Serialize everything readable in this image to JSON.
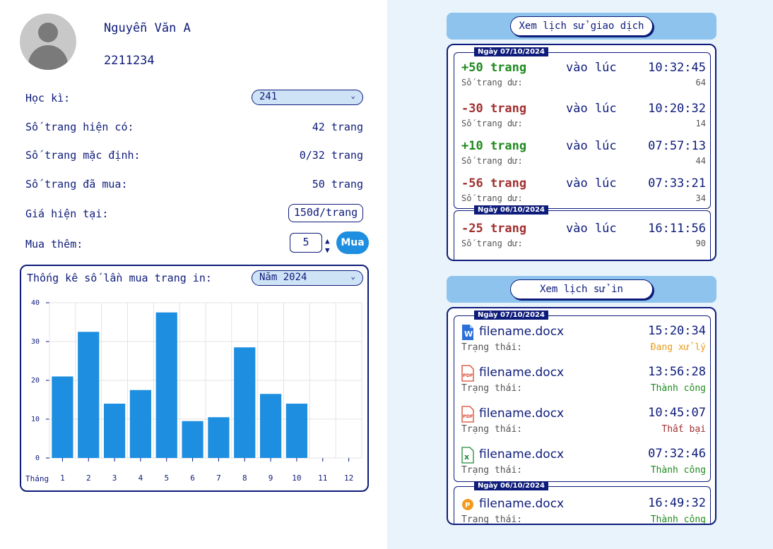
{
  "user": {
    "name": "Nguyễn Văn A",
    "id": "2211234"
  },
  "info": {
    "semester_label": "Học kì:",
    "semester_value": "241",
    "pages_available_label": "Số trang hiện có:",
    "pages_available_value": "42 trang",
    "pages_default_label": "Số trang mặc định:",
    "pages_default_value": "0/32 trang",
    "pages_bought_label": "Số trang đã mua:",
    "pages_bought_value": "50 trang",
    "price_label": "Giá hiện tại:",
    "price_value": "150đ/trang",
    "buy_more_label": "Mua thêm:",
    "buy_qty": "5",
    "buy_button": "Mua"
  },
  "stats": {
    "title": "Thống kê số lần mua trang in:",
    "year_select": "Năm 2024",
    "x_prefix": "Tháng"
  },
  "chart_data": {
    "type": "bar",
    "categories": [
      "1",
      "2",
      "3",
      "4",
      "5",
      "6",
      "7",
      "8",
      "9",
      "10",
      "11",
      "12"
    ],
    "values": [
      21,
      32.5,
      14,
      17.5,
      37.5,
      9.5,
      10.5,
      28.5,
      16.5,
      14,
      null,
      null
    ],
    "ylim": [
      0,
      40
    ],
    "yticks": [
      0,
      10,
      20,
      30,
      40
    ],
    "grid": true,
    "color": "#1d8ee0"
  },
  "transactions": {
    "header_button": "Xem lịch sử giao dịch",
    "at_label": "vào lúc",
    "remaining_label": "Số trang dư:",
    "groups": [
      {
        "date": "Ngày 07/10/2024",
        "items": [
          {
            "amount": "+50 trang",
            "time": "10:32:45",
            "remaining": "64",
            "sign": "pos"
          },
          {
            "amount": "-30 trang",
            "time": "10:20:32",
            "remaining": "14",
            "sign": "neg"
          },
          {
            "amount": "+10 trang",
            "time": "07:57:13",
            "remaining": "44",
            "sign": "pos"
          },
          {
            "amount": "-56 trang",
            "time": "07:33:21",
            "remaining": "34",
            "sign": "neg"
          }
        ]
      },
      {
        "date": "Ngày 06/10/2024",
        "items": [
          {
            "amount": "-25 trang",
            "time": "16:11:56",
            "remaining": "90",
            "sign": "neg"
          }
        ]
      }
    ]
  },
  "prints": {
    "header_button": "Xem lịch sử in",
    "status_label": "Trạng thái:",
    "groups": [
      {
        "date": "Ngày 07/10/2024",
        "items": [
          {
            "icon": "word-file-icon",
            "file": "filename.docx",
            "time": "15:20:34",
            "status": "Đang xử lý",
            "status_kind": "proc"
          },
          {
            "icon": "pdf-file-icon",
            "file": "filename.docx",
            "time": "13:56:28",
            "status": "Thành công",
            "status_kind": "ok"
          },
          {
            "icon": "pdf-file-icon",
            "file": "filename.docx",
            "time": "10:45:07",
            "status": "Thất bại",
            "status_kind": "fail"
          },
          {
            "icon": "excel-file-icon",
            "file": "filename.docx",
            "time": "07:32:46",
            "status": "Thành công",
            "status_kind": "ok"
          }
        ]
      },
      {
        "date": "Ngày 06/10/2024",
        "items": [
          {
            "icon": "powerpoint-file-icon",
            "file": "filename.docx",
            "time": "16:49:32",
            "status": "Thành công",
            "status_kind": "ok"
          }
        ]
      }
    ]
  },
  "colors": {
    "navy": "#0d1b7a",
    "accent": "#1d8ee0",
    "panel_bg": "#e9f3fc",
    "header_bg": "#8dc3ec",
    "positive": "#1f8a1f",
    "negative": "#a23030",
    "processing": "#e89a1a"
  }
}
